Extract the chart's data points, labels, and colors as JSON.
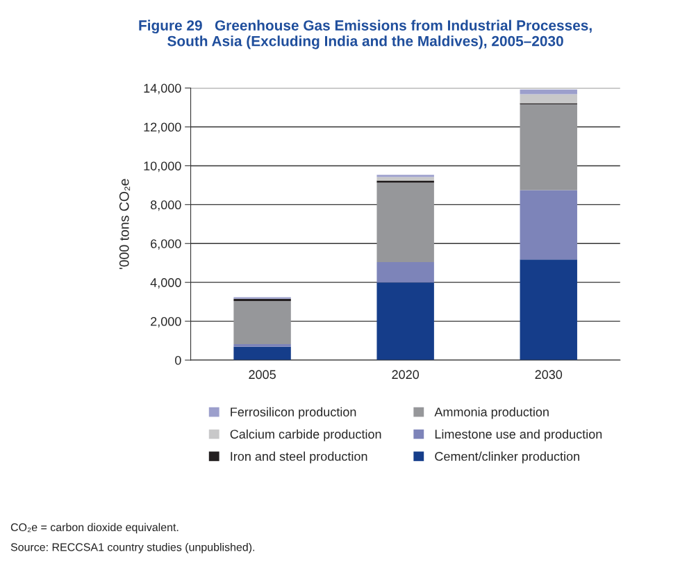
{
  "chart_data": {
    "type": "bar",
    "stacked": true,
    "title": "Figure 29   Greenhouse Gas Emissions from Industrial Processes,\nSouth Asia (Excluding India and the Maldives), 2005–2030",
    "ylabel": "'000 tons CO₂e",
    "categories": [
      "2005",
      "2020",
      "2030"
    ],
    "series": [
      {
        "name": "Cement/clinker production",
        "color": "#153d8a",
        "values": [
          690,
          4000,
          5180
        ]
      },
      {
        "name": "Limestone use and production",
        "color": "#7d84b9",
        "values": [
          130,
          1040,
          3570
        ]
      },
      {
        "name": "Ammonia production",
        "color": "#96979a",
        "values": [
          2220,
          4090,
          4410
        ]
      },
      {
        "name": "Iron and steel production",
        "color": "#231f20",
        "values": [
          120,
          110,
          60
        ]
      },
      {
        "name": "Calcium carbide production",
        "color": "#c8c8c9",
        "values": [
          0,
          190,
          460
        ]
      },
      {
        "name": "Ferrosilicon production",
        "color": "#9c9fcc",
        "values": [
          80,
          100,
          240
        ]
      }
    ],
    "ylim": [
      0,
      14000
    ],
    "yticks": [
      {
        "value": 0,
        "label": "0"
      },
      {
        "value": 2000,
        "label": "2,000"
      },
      {
        "value": 4000,
        "label": "4,000"
      },
      {
        "value": 6000,
        "label": "6,000"
      },
      {
        "value": 8000,
        "label": "8,000"
      },
      {
        "value": 10000,
        "label": "10,000"
      },
      {
        "value": 12000,
        "label": "12,000"
      },
      {
        "value": 14000,
        "label": "14,000"
      }
    ],
    "grid": "y",
    "legend": "bottom",
    "annotations": [
      "CO₂e = carbon dioxide equivalent.",
      "Source: RECCSA1 country studies (unpublished)."
    ]
  }
}
